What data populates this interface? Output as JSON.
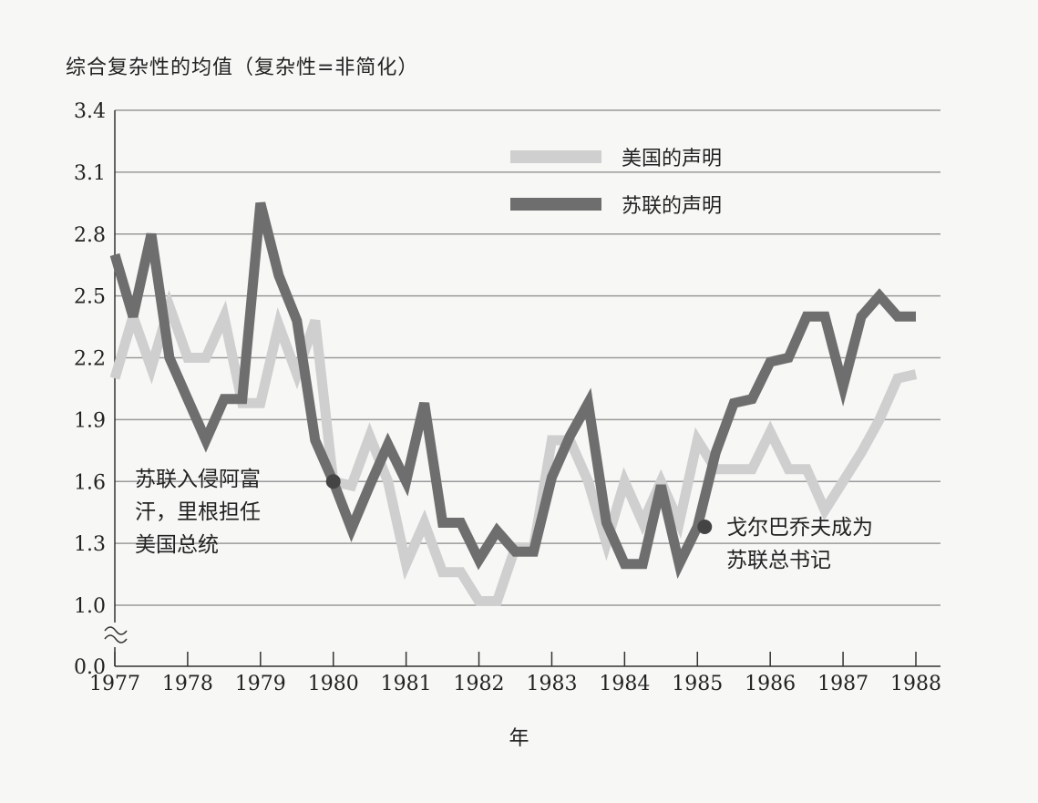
{
  "chart_data": {
    "type": "line",
    "title": "综合复杂性的均值（复杂性=非简化）",
    "xlabel": "年",
    "ylabel": "",
    "xlim": [
      1977,
      1988
    ],
    "ylim": [
      1.0,
      3.4
    ],
    "x_ticks": [
      "1977",
      "1978",
      "1979",
      "1980",
      "1981",
      "1982",
      "1983",
      "1984",
      "1985",
      "1986",
      "1987",
      "1988"
    ],
    "y_ticks": [
      "3.4",
      "3.1",
      "2.8",
      "2.5",
      "2.2",
      "1.9",
      "1.6",
      "1.3",
      "1.0"
    ],
    "y_break_label": "0.0",
    "grid": true,
    "legend_position": "top-right",
    "series": [
      {
        "name": "美国的声明",
        "color": "#cfcfcf",
        "x": [
          1977.0,
          1977.25,
          1977.5,
          1977.75,
          1978.0,
          1978.25,
          1978.5,
          1978.75,
          1979.0,
          1979.25,
          1979.5,
          1979.75,
          1980.0,
          1980.25,
          1980.5,
          1980.75,
          1981.0,
          1981.25,
          1981.5,
          1981.75,
          1982.0,
          1982.25,
          1982.5,
          1982.75,
          1983.0,
          1983.25,
          1983.5,
          1983.75,
          1984.0,
          1984.25,
          1984.5,
          1984.75,
          1985.0,
          1985.25,
          1985.5,
          1985.75,
          1986.0,
          1986.25,
          1986.5,
          1986.75,
          1987.0,
          1987.25,
          1987.5,
          1987.75,
          1988.0
        ],
        "values": [
          2.1,
          2.4,
          2.15,
          2.45,
          2.2,
          2.2,
          2.4,
          1.98,
          1.98,
          2.36,
          2.12,
          2.38,
          1.6,
          1.58,
          1.82,
          1.6,
          1.2,
          1.4,
          1.16,
          1.16,
          1.02,
          1.02,
          1.28,
          1.28,
          1.8,
          1.8,
          1.6,
          1.3,
          1.6,
          1.4,
          1.6,
          1.4,
          1.8,
          1.66,
          1.66,
          1.66,
          1.84,
          1.66,
          1.66,
          1.46,
          1.6,
          1.74,
          1.9,
          2.1,
          2.12
        ]
      },
      {
        "name": "苏联的声明",
        "color": "#6e6e6e",
        "x": [
          1977.0,
          1977.25,
          1977.5,
          1977.75,
          1978.0,
          1978.25,
          1978.5,
          1978.75,
          1979.0,
          1979.25,
          1979.5,
          1979.75,
          1980.0,
          1980.25,
          1980.5,
          1980.75,
          1981.0,
          1981.25,
          1981.5,
          1981.75,
          1982.0,
          1982.25,
          1982.5,
          1982.75,
          1983.0,
          1983.25,
          1983.5,
          1983.75,
          1984.0,
          1984.25,
          1984.5,
          1984.75,
          1985.0,
          1985.25,
          1985.5,
          1985.75,
          1986.0,
          1986.25,
          1986.5,
          1986.75,
          1987.0,
          1987.25,
          1987.5,
          1987.75,
          1988.0
        ],
        "values": [
          2.7,
          2.4,
          2.8,
          2.2,
          2.0,
          1.8,
          2.0,
          2.0,
          2.95,
          2.6,
          2.38,
          1.8,
          1.6,
          1.37,
          1.58,
          1.78,
          1.6,
          1.98,
          1.4,
          1.4,
          1.22,
          1.36,
          1.26,
          1.26,
          1.62,
          1.82,
          1.98,
          1.4,
          1.2,
          1.2,
          1.58,
          1.2,
          1.38,
          1.74,
          1.98,
          2.0,
          2.18,
          2.2,
          2.4,
          2.4,
          2.06,
          2.4,
          2.5,
          2.4,
          2.4
        ]
      }
    ],
    "annotations": [
      {
        "lines": [
          "苏联入侵阿富",
          "汗，里根担任",
          "美国总统"
        ],
        "x": 1980.0,
        "y": 1.6
      },
      {
        "lines": [
          "戈尔巴乔夫成为",
          "苏联总书记"
        ],
        "x": 1985.1,
        "y": 1.38
      }
    ]
  }
}
